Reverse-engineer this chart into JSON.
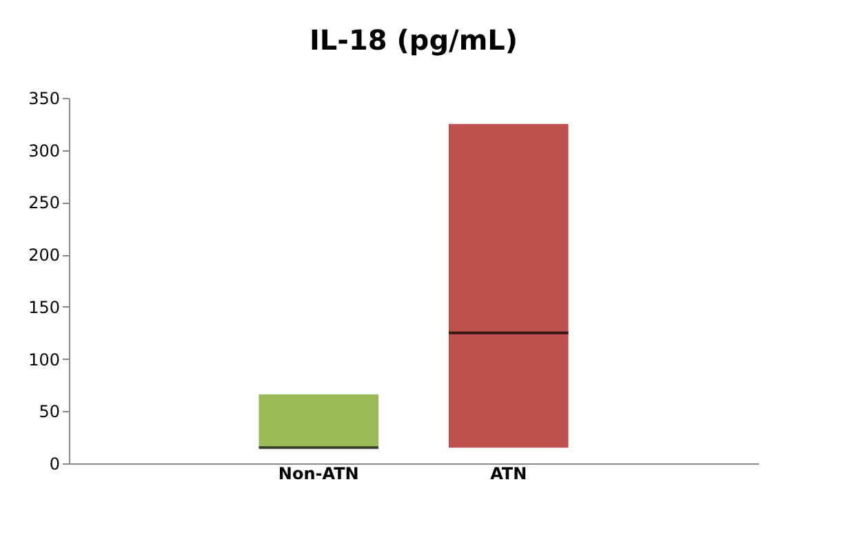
{
  "chart_data": {
    "type": "box",
    "title": "IL-18 (pg/mL)",
    "categories": [
      "Non-ATN",
      "ATN"
    ],
    "boxes": [
      {
        "low": 15,
        "q1": 15,
        "median": 15,
        "q3": 66,
        "high": 66
      },
      {
        "low": 15,
        "q1": 15,
        "median": 125,
        "q3": 325,
        "high": 325
      }
    ],
    "colors": [
      "#9bbb59",
      "#c0504d"
    ],
    "ylim": [
      0,
      350
    ],
    "yticks": [
      0,
      50,
      100,
      150,
      200,
      250,
      300,
      350
    ],
    "grid": false
  }
}
